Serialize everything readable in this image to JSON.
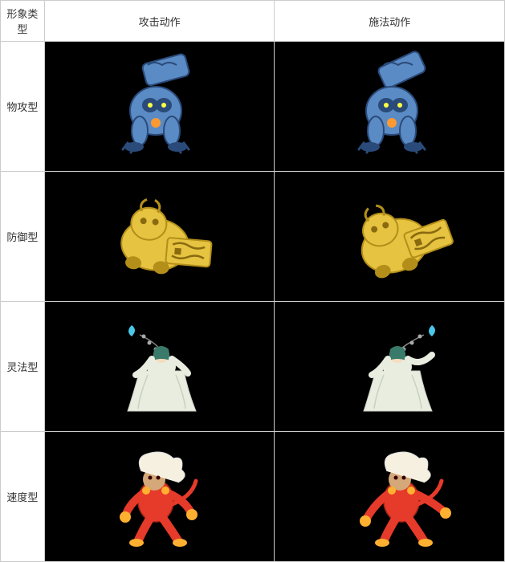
{
  "headers": {
    "type": "形象类型",
    "attack": "攻击动作",
    "cast": "施法动作"
  },
  "rows": [
    {
      "label": "物攻型",
      "sprite": "blue-beast",
      "primary": "#5a8bc4",
      "secondary": "#2a4a7a",
      "accent": "#ff9933"
    },
    {
      "label": "防御型",
      "sprite": "gold-guardian",
      "primary": "#e6c340",
      "secondary": "#b38f1a",
      "accent": "#8a6a10"
    },
    {
      "label": "灵法型",
      "sprite": "sage",
      "primary": "#e8ede0",
      "secondary": "#3a7a6a",
      "accent": "#4ac8e8"
    },
    {
      "label": "速度型",
      "sprite": "monkey",
      "primary": "#e63a2a",
      "secondary": "#f5f0e0",
      "accent": "#ffb030"
    }
  ]
}
